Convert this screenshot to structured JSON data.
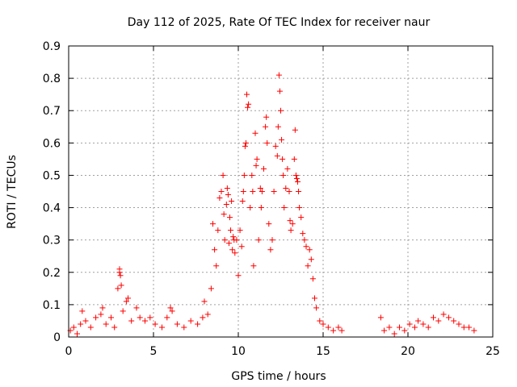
{
  "chart_data": {
    "type": "scatter",
    "title": "Day 112 of 2025, Rate Of TEC Index for receiver naur",
    "xlabel": "GPS time / hours",
    "ylabel": "ROTI / TECUs",
    "xlim": [
      0,
      25
    ],
    "ylim": [
      0,
      0.9
    ],
    "x_ticks": [
      "0",
      "5",
      "10",
      "15",
      "20",
      "25"
    ],
    "y_ticks": [
      "0",
      "0.1",
      "0.2",
      "0.3",
      "0.4",
      "0.5",
      "0.6",
      "0.7",
      "0.8",
      "0.9"
    ],
    "grid": true,
    "marker": "+",
    "marker_color": "#ff0000",
    "series": [
      {
        "points": [
          [
            0.1,
            0.02
          ],
          [
            0.3,
            0.03
          ],
          [
            0.5,
            0.01
          ],
          [
            0.7,
            0.04
          ],
          [
            0.8,
            0.08
          ],
          [
            1.0,
            0.05
          ],
          [
            1.3,
            0.03
          ],
          [
            1.6,
            0.06
          ],
          [
            1.9,
            0.07
          ],
          [
            2.0,
            0.09
          ],
          [
            2.2,
            0.04
          ],
          [
            2.5,
            0.06
          ],
          [
            2.7,
            0.03
          ],
          [
            2.9,
            0.15
          ],
          [
            3.0,
            0.21
          ],
          [
            3.0,
            0.2
          ],
          [
            3.05,
            0.19
          ],
          [
            3.1,
            0.16
          ],
          [
            3.2,
            0.08
          ],
          [
            3.4,
            0.11
          ],
          [
            3.5,
            0.12
          ],
          [
            3.7,
            0.05
          ],
          [
            4.0,
            0.09
          ],
          [
            4.2,
            0.06
          ],
          [
            4.5,
            0.05
          ],
          [
            4.8,
            0.06
          ],
          [
            5.1,
            0.04
          ],
          [
            5.5,
            0.03
          ],
          [
            5.8,
            0.06
          ],
          [
            6.0,
            0.09
          ],
          [
            6.1,
            0.08
          ],
          [
            6.4,
            0.04
          ],
          [
            6.8,
            0.03
          ],
          [
            7.2,
            0.05
          ],
          [
            7.6,
            0.04
          ],
          [
            7.9,
            0.06
          ],
          [
            8.0,
            0.11
          ],
          [
            8.2,
            0.07
          ],
          [
            8.4,
            0.15
          ],
          [
            8.5,
            0.35
          ],
          [
            8.6,
            0.27
          ],
          [
            8.7,
            0.22
          ],
          [
            8.8,
            0.33
          ],
          [
            8.9,
            0.43
          ],
          [
            9.0,
            0.45
          ],
          [
            9.1,
            0.5
          ],
          [
            9.15,
            0.38
          ],
          [
            9.2,
            0.3
          ],
          [
            9.3,
            0.41
          ],
          [
            9.35,
            0.46
          ],
          [
            9.4,
            0.44
          ],
          [
            9.45,
            0.29
          ],
          [
            9.5,
            0.37
          ],
          [
            9.55,
            0.33
          ],
          [
            9.6,
            0.42
          ],
          [
            9.65,
            0.27
          ],
          [
            9.7,
            0.31
          ],
          [
            9.75,
            0.3
          ],
          [
            9.8,
            0.26
          ],
          [
            9.9,
            0.3
          ],
          [
            10.0,
            0.19
          ],
          [
            10.1,
            0.33
          ],
          [
            10.2,
            0.28
          ],
          [
            10.25,
            0.42
          ],
          [
            10.3,
            0.45
          ],
          [
            10.35,
            0.5
          ],
          [
            10.4,
            0.59
          ],
          [
            10.45,
            0.6
          ],
          [
            10.5,
            0.75
          ],
          [
            10.55,
            0.71
          ],
          [
            10.6,
            0.72
          ],
          [
            10.7,
            0.4
          ],
          [
            10.8,
            0.5
          ],
          [
            10.85,
            0.45
          ],
          [
            10.9,
            0.22
          ],
          [
            11.0,
            0.63
          ],
          [
            11.05,
            0.53
          ],
          [
            11.1,
            0.55
          ],
          [
            11.2,
            0.3
          ],
          [
            11.3,
            0.46
          ],
          [
            11.35,
            0.4
          ],
          [
            11.4,
            0.45
          ],
          [
            11.5,
            0.52
          ],
          [
            11.6,
            0.65
          ],
          [
            11.65,
            0.68
          ],
          [
            11.7,
            0.6
          ],
          [
            11.8,
            0.35
          ],
          [
            11.9,
            0.27
          ],
          [
            12.0,
            0.3
          ],
          [
            12.1,
            0.45
          ],
          [
            12.2,
            0.59
          ],
          [
            12.3,
            0.56
          ],
          [
            12.35,
            0.65
          ],
          [
            12.4,
            0.81
          ],
          [
            12.45,
            0.76
          ],
          [
            12.5,
            0.7
          ],
          [
            12.55,
            0.61
          ],
          [
            12.6,
            0.55
          ],
          [
            12.65,
            0.5
          ],
          [
            12.7,
            0.4
          ],
          [
            12.8,
            0.46
          ],
          [
            12.9,
            0.52
          ],
          [
            13.0,
            0.45
          ],
          [
            13.05,
            0.36
          ],
          [
            13.1,
            0.33
          ],
          [
            13.2,
            0.35
          ],
          [
            13.3,
            0.55
          ],
          [
            13.35,
            0.64
          ],
          [
            13.4,
            0.5
          ],
          [
            13.45,
            0.49
          ],
          [
            13.5,
            0.48
          ],
          [
            13.55,
            0.45
          ],
          [
            13.6,
            0.4
          ],
          [
            13.7,
            0.37
          ],
          [
            13.8,
            0.32
          ],
          [
            13.9,
            0.3
          ],
          [
            14.0,
            0.28
          ],
          [
            14.1,
            0.22
          ],
          [
            14.2,
            0.27
          ],
          [
            14.3,
            0.24
          ],
          [
            14.4,
            0.18
          ],
          [
            14.5,
            0.12
          ],
          [
            14.6,
            0.09
          ],
          [
            14.8,
            0.05
          ],
          [
            15.0,
            0.04
          ],
          [
            15.3,
            0.03
          ],
          [
            15.6,
            0.02
          ],
          [
            15.9,
            0.03
          ],
          [
            16.1,
            0.02
          ],
          [
            18.4,
            0.06
          ],
          [
            18.6,
            0.02
          ],
          [
            18.9,
            0.03
          ],
          [
            19.2,
            0.01
          ],
          [
            19.5,
            0.03
          ],
          [
            19.8,
            0.02
          ],
          [
            20.1,
            0.04
          ],
          [
            20.4,
            0.03
          ],
          [
            20.6,
            0.05
          ],
          [
            20.9,
            0.04
          ],
          [
            21.2,
            0.03
          ],
          [
            21.5,
            0.06
          ],
          [
            21.8,
            0.05
          ],
          [
            22.1,
            0.07
          ],
          [
            22.4,
            0.06
          ],
          [
            22.7,
            0.05
          ],
          [
            23.0,
            0.04
          ],
          [
            23.3,
            0.03
          ],
          [
            23.6,
            0.03
          ],
          [
            23.9,
            0.02
          ]
        ]
      }
    ]
  }
}
